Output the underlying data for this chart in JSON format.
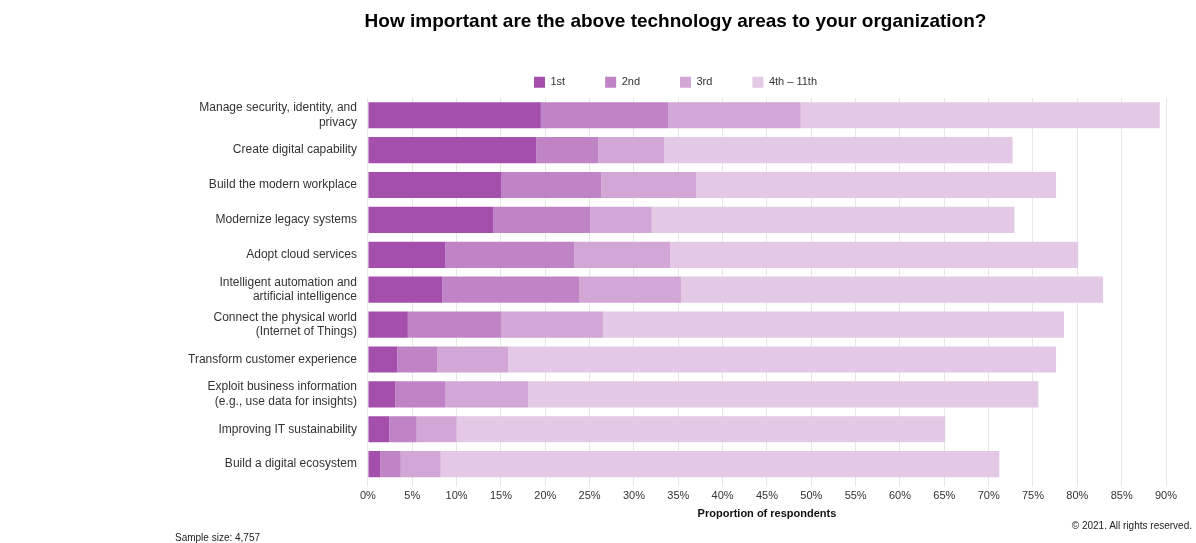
{
  "chart_data": {
    "type": "bar",
    "orientation": "horizontal",
    "stacked": true,
    "title": "How important are the above technology areas to your organization?",
    "xlabel": "Proportion of respondents",
    "categories": [
      "Manage security, identity, and privacy",
      "Create digital capability",
      "Build the modern workplace",
      "Modernize legacy systems",
      "Adopt cloud services",
      "Intelligent automation and artificial intelligence",
      "Connect the physical world (Internet of Things)",
      "Transform customer experience",
      "Exploit business information (e.g., use data for insights)",
      "Improving IT sustainability",
      "Build a digital ecosystem"
    ],
    "series": [
      {
        "name": "1st",
        "color": "#a34fab",
        "values": [
          19.5,
          19.0,
          15.0,
          14.1,
          8.7,
          8.4,
          4.5,
          3.3,
          3.1,
          2.4,
          1.4
        ]
      },
      {
        "name": "2nd",
        "color": "#c084c6",
        "values": [
          14.4,
          7.0,
          11.3,
          11.0,
          14.6,
          15.4,
          10.5,
          4.5,
          5.6,
          3.1,
          2.3
        ]
      },
      {
        "name": "3rd",
        "color": "#d2a6d5",
        "values": [
          14.9,
          7.4,
          10.7,
          6.9,
          10.8,
          11.5,
          11.5,
          8.0,
          9.4,
          4.5,
          4.5
        ]
      },
      {
        "name": "4th – 11th",
        "color": "#e3c9e5",
        "values": [
          40.5,
          39.3,
          40.6,
          40.9,
          46.0,
          47.6,
          52.0,
          61.8,
          57.5,
          55.1,
          63.0
        ]
      }
    ],
    "xlim": [
      0,
      90
    ],
    "xticks": [
      {
        "value": 0,
        "label": "0%"
      },
      {
        "value": 5,
        "label": "5%"
      },
      {
        "value": 10,
        "label": "10%"
      },
      {
        "value": 15,
        "label": "15%"
      },
      {
        "value": 20,
        "label": "20%"
      },
      {
        "value": 25,
        "label": "25%"
      },
      {
        "value": 30,
        "label": "30%"
      },
      {
        "value": 35,
        "label": "35%"
      },
      {
        "value": 40,
        "label": "40%"
      },
      {
        "value": 45,
        "label": "45%"
      },
      {
        "value": 50,
        "label": "50%"
      },
      {
        "value": 55,
        "label": "55%"
      },
      {
        "value": 60,
        "label": "60%"
      },
      {
        "value": 65,
        "label": "65%"
      },
      {
        "value": 70,
        "label": "70%"
      },
      {
        "value": 75,
        "label": "75%"
      },
      {
        "value": 80,
        "label": "80%"
      },
      {
        "value": 85,
        "label": "85%"
      },
      {
        "value": 90,
        "label": "90%"
      }
    ],
    "grid": "x",
    "legend": "top",
    "annotations": [
      "Sample size: 4,757",
      "© 2021. All rights reserved."
    ]
  }
}
